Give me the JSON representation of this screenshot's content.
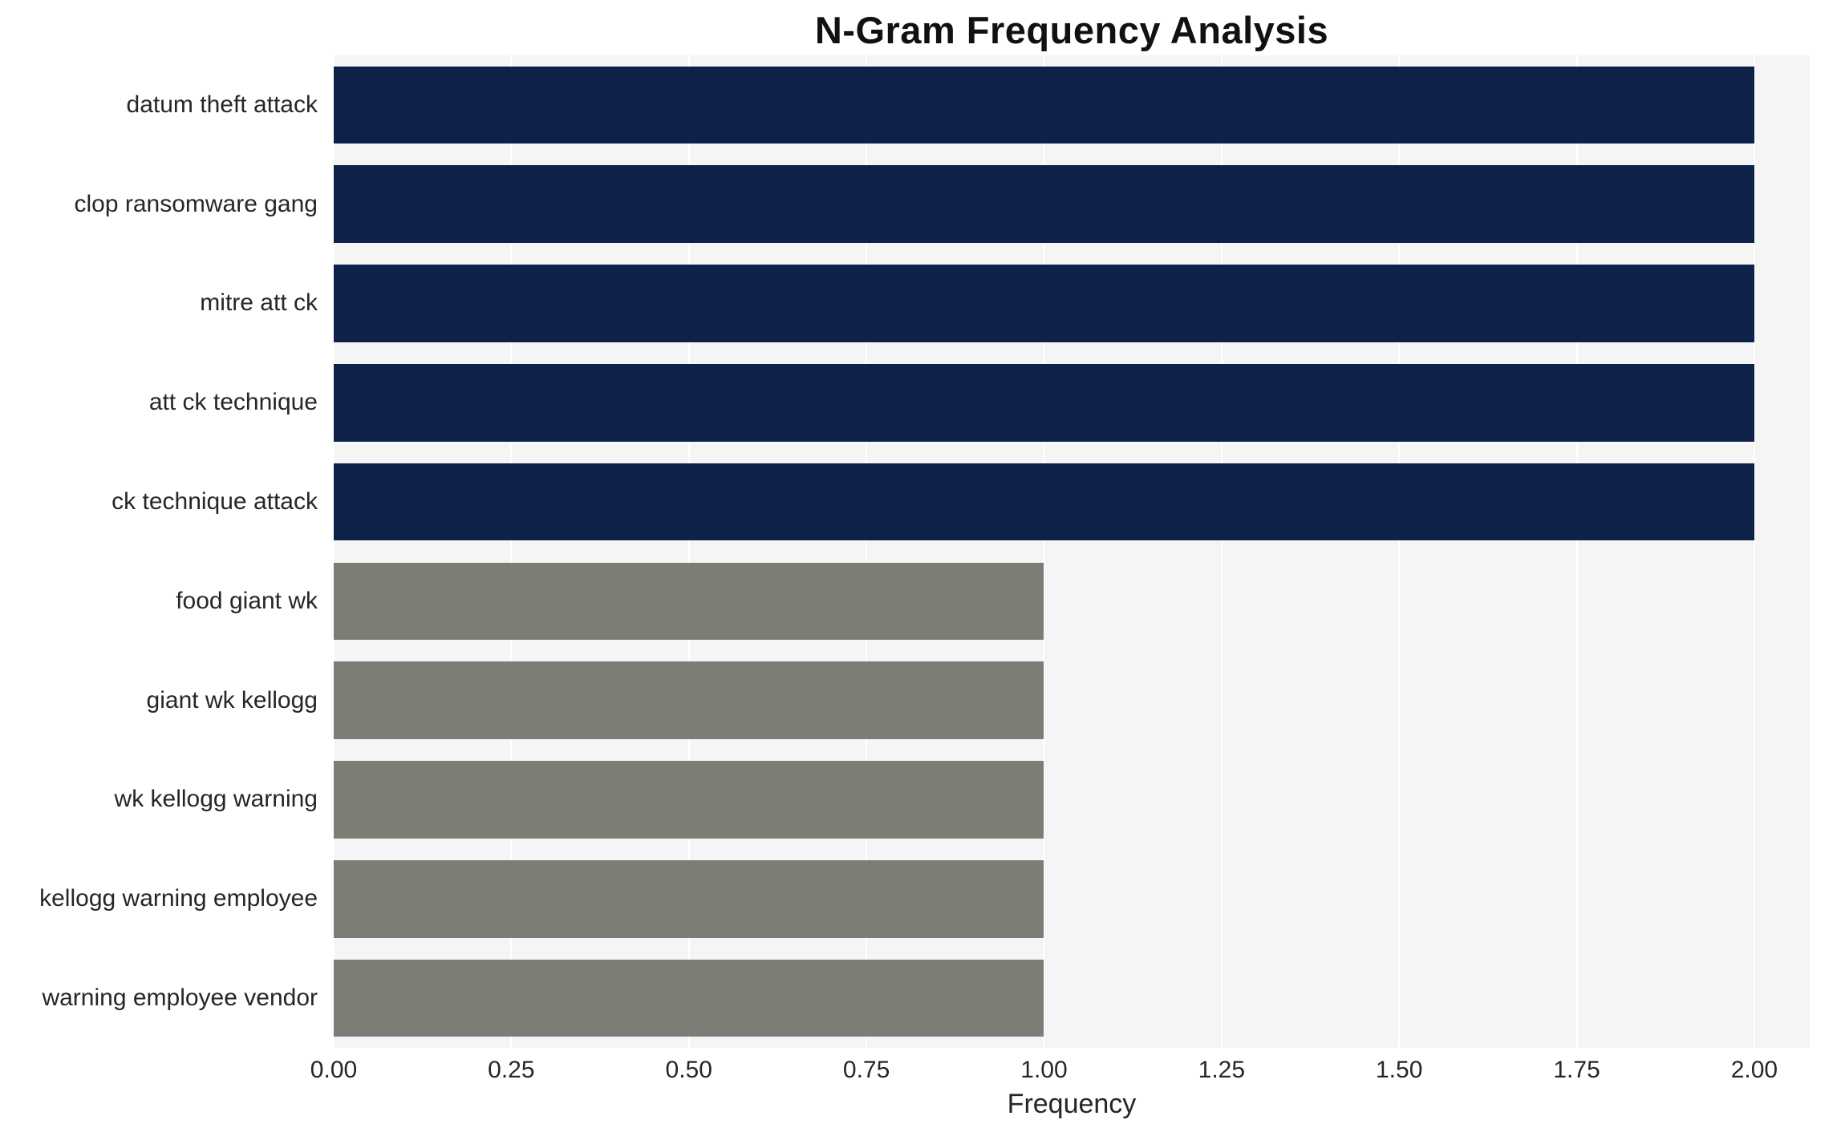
{
  "chart_data": {
    "type": "bar",
    "orientation": "horizontal",
    "title": "N-Gram Frequency Analysis",
    "xlabel": "Frequency",
    "ylabel": "",
    "xlim": [
      0,
      2.078
    ],
    "x_ticks": [
      0.0,
      0.25,
      0.5,
      0.75,
      1.0,
      1.25,
      1.5,
      1.75,
      2.0
    ],
    "x_tick_labels": [
      "0.00",
      "0.25",
      "0.50",
      "0.75",
      "1.00",
      "1.25",
      "1.50",
      "1.75",
      "2.00"
    ],
    "categories": [
      "datum theft attack",
      "clop ransomware gang",
      "mitre att ck",
      "att ck technique",
      "ck technique attack",
      "food giant wk",
      "giant wk kellogg",
      "wk kellogg warning",
      "kellogg warning employee",
      "warning employee vendor"
    ],
    "values": [
      2,
      2,
      2,
      2,
      2,
      1,
      1,
      1,
      1,
      1
    ],
    "bar_colors": [
      "#0d2149",
      "#0d2149",
      "#0d2149",
      "#0d2149",
      "#0d2149",
      "#7d7d76",
      "#7d7d76",
      "#7d7d76",
      "#7d7d76",
      "#7d7d76"
    ],
    "colors": {
      "high_value": "#0d2149",
      "low_value": "#7d7d76",
      "plot_background": "#f5f5f5",
      "gridline": "#ffffff"
    },
    "legend": "none",
    "grid": "vertical-major"
  }
}
